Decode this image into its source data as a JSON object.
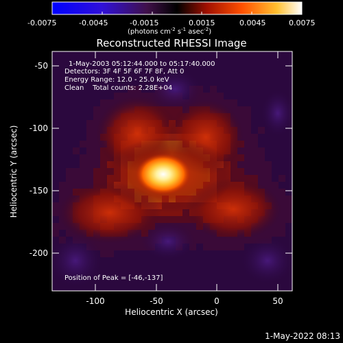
{
  "colorbar": {
    "ticks": [
      "-0.0075",
      "-0.0045",
      "-0.0015",
      "0.0015",
      "0.0045",
      "0.0075"
    ],
    "unit_main": "(photons cm",
    "unit_exp1": "-2",
    "unit_s": " s",
    "unit_exp2": "-1",
    "unit_asec": " asec",
    "unit_exp3": "-2",
    "unit_close": ")",
    "colors": [
      "#0000ff",
      "#5010c8",
      "#3a0830",
      "#000000",
      "#c02000",
      "#ff7000",
      "#ffd040",
      "#ffffff"
    ]
  },
  "title": "Reconstructed RHESSI Image",
  "info": {
    "time_range": "1-May-2003 05:12:44.000 to 05:17:40.000",
    "detectors": "Detectors: 3F 4F 5F 6F 7F 8F, Att 0",
    "energy": "Energy Range: 12.0 - 25.0 keV",
    "clean": "Clean    Total counts: 2.28E+04",
    "peak": "Position of Peak = [-46,-137]"
  },
  "axes": {
    "xlabel": "Heliocentric X (arcsec)",
    "ylabel": "Heliocentric Y (arcsec)",
    "xticks": [
      "-100",
      "-50",
      "0",
      "50"
    ],
    "yticks": [
      "-50",
      "-100",
      "-150",
      "-200"
    ]
  },
  "footer": {
    "timestamp": "1-May-2022 08:13"
  },
  "image": {
    "source_x": -46,
    "source_y": -137,
    "palette": [
      "#2a0840",
      "#3c0a38",
      "#5a0a1c",
      "#8c1408",
      "#c82c04",
      "#ff7a00",
      "#ffd84a",
      "#ffffff"
    ]
  }
}
